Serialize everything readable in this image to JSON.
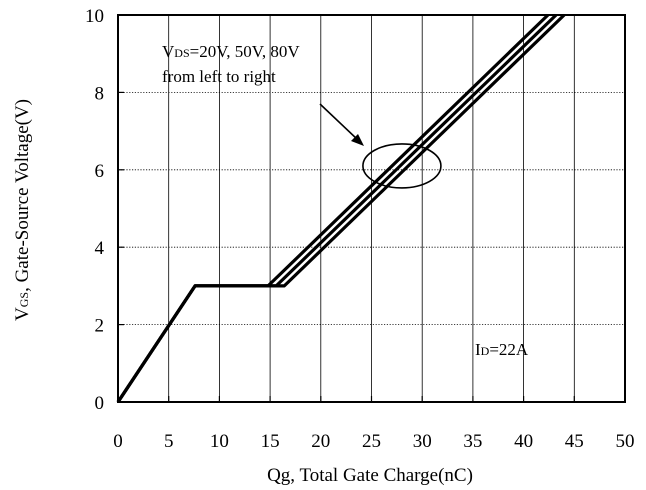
{
  "chart_data": {
    "type": "line",
    "xlabel": "Qg, Total Gate Charge(nC)",
    "ylabel": {
      "main": "V",
      "sub": "GS",
      "rest": ", Gate-Source Voltage(V)"
    },
    "xlim": [
      0,
      50
    ],
    "ylim": [
      0,
      10
    ],
    "x_ticks": [
      "0",
      "5",
      "10",
      "15",
      "20",
      "25",
      "30",
      "35",
      "40",
      "45",
      "50"
    ],
    "y_ticks": [
      "0",
      "2",
      "4",
      "6",
      "8",
      "10"
    ],
    "grid": true,
    "series": [
      {
        "x": [
          0,
          7.6,
          14.8,
          42.4
        ],
        "y": [
          0,
          3,
          3,
          10
        ]
      },
      {
        "x": [
          0,
          7.6,
          15.6,
          43.2
        ],
        "y": [
          0,
          3,
          3,
          10
        ]
      },
      {
        "x": [
          0,
          7.6,
          16.4,
          44.0
        ],
        "y": [
          0,
          3,
          3,
          10
        ]
      }
    ],
    "annotations": {
      "vds_line1": {
        "main": "V",
        "sub": "DS",
        "rest": "=20V, 50V, 80V"
      },
      "vds_line2": "from left to right",
      "id_label": {
        "main": "I",
        "sub": "D",
        "rest": "=22A"
      }
    },
    "highlight_ellipse_center": {
      "x": 28,
      "y": 6.1
    }
  }
}
